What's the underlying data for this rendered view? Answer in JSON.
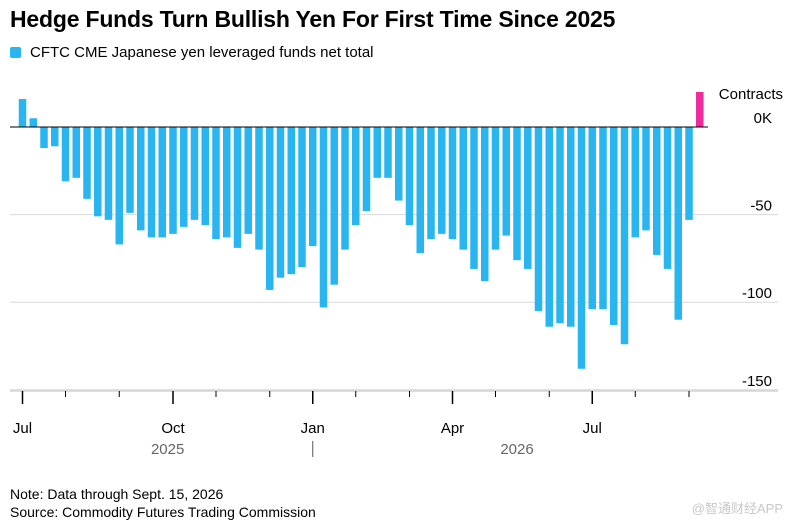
{
  "title": "Hedge Funds Turn Bullish Yen For First Time Since 2025",
  "legend": {
    "label": "CFTC CME Japanese yen leveraged funds net total",
    "color": "#29b6f0"
  },
  "note": "Note: Data through Sept. 15, 2026",
  "source": "Source: Commodity Futures Trading Commission",
  "watermark": "@智通财经APP",
  "colors": {
    "bar": "#29b6f0",
    "highlight": "#ee2b9b",
    "grid": "#d9d9d9",
    "zero": "#000000",
    "year_label": "#666666"
  },
  "chart_data": {
    "type": "bar",
    "unit_label": "Contracts",
    "ylim": [
      -150,
      15
    ],
    "y_ticks": [
      {
        "value": 0,
        "label": "0K"
      },
      {
        "value": -50,
        "label": "-50"
      },
      {
        "value": -100,
        "label": "-100"
      },
      {
        "value": -150,
        "label": "-150"
      }
    ],
    "x_ticks": [
      {
        "index": 0,
        "label": "Jul"
      },
      {
        "index": 14,
        "label": "Oct"
      },
      {
        "index": 27,
        "label": "Jan"
      },
      {
        "index": 40,
        "label": "Apr"
      },
      {
        "index": 53,
        "label": "Jul"
      }
    ],
    "minor_tick_indices": [
      4,
      9,
      18,
      23,
      31,
      36,
      44,
      49,
      57,
      62
    ],
    "years": [
      {
        "label": "2025",
        "center_index": 13.5
      },
      {
        "label": "2026",
        "center_index": 46
      }
    ],
    "year_divider_index": 27,
    "grid": true,
    "series": [
      {
        "name": "CFTC CME Japanese yen leveraged funds net total",
        "values": [
          16,
          5,
          -12,
          -11,
          -31,
          -29,
          -41,
          -51,
          -53,
          -67,
          -49,
          -59,
          -63,
          -63,
          -61,
          -57,
          -53,
          -56,
          -64,
          -63,
          -69,
          -61,
          -70,
          -93,
          -86,
          -84,
          -80,
          -68,
          -103,
          -90,
          -70,
          -56,
          -48,
          -29,
          -29,
          -42,
          -56,
          -72,
          -64,
          -61,
          -64,
          -70,
          -81,
          -88,
          -70,
          -62,
          -76,
          -81,
          -105,
          -114,
          -112,
          -114,
          -138,
          -104,
          -104,
          -113,
          -124,
          -63,
          -59,
          -73,
          -81,
          -110,
          -53,
          20
        ],
        "highlight_last": true
      }
    ]
  }
}
